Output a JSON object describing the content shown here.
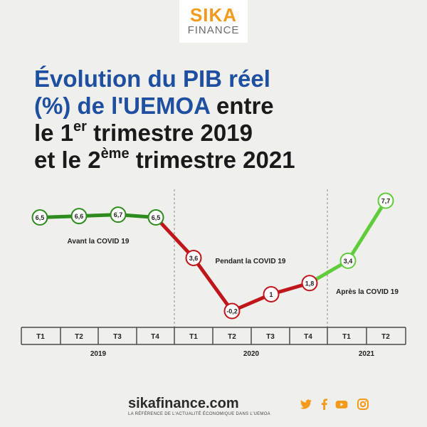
{
  "brand": {
    "logo_top": "SIKA",
    "logo_bottom": "FINANCE",
    "site": "sikafinance.com",
    "tagline": "LA RÉFÉRENCE DE L'ACTUALITÉ ÉCONOMIQUE DANS L'UEMOA",
    "accent": "#f39a1b",
    "social_icons": [
      "twitter-icon",
      "facebook-icon",
      "youtube-icon",
      "instagram-icon"
    ]
  },
  "title": {
    "line1": "Évolution du PIB réel",
    "line2a": "(%) de l'UEMOA",
    "line2b": " entre",
    "line3a": "le 1",
    "line3sup": "er",
    "line3b": " trimestre 2019",
    "line4a": "et le 2",
    "line4sup": "ème",
    "line4b": " trimestre 2021"
  },
  "chart_data": {
    "type": "line",
    "title": "Évolution du PIB réel (%) de l'UEMOA entre le 1er trimestre 2019 et le 2ème trimestre 2021",
    "x": [
      "T1 2019",
      "T2 2019",
      "T3 2019",
      "T4 2019",
      "T1 2020",
      "T2 2020",
      "T3 2020",
      "T4 2020",
      "T1 2021",
      "T2 2021"
    ],
    "quarters": [
      "T1",
      "T2",
      "T3",
      "T4",
      "T1",
      "T2",
      "T3",
      "T4",
      "T1",
      "T2"
    ],
    "years": [
      "2019",
      "2020",
      "2021"
    ],
    "values": [
      6.5,
      6.6,
      6.7,
      6.5,
      3.6,
      -0.2,
      1,
      1.8,
      3.4,
      7.7
    ],
    "value_labels": [
      "6,5",
      "6,6",
      "6,7",
      "6,5",
      "3,6",
      "-0,2",
      "1",
      "1,8",
      "3,4",
      "7,7"
    ],
    "periods": [
      {
        "label": "Avant la COVID 19",
        "color": "#2e8b1e"
      },
      {
        "label": "Pendant la COVID 19",
        "color": "#c0161b"
      },
      {
        "label": "Après la COVID 19",
        "color": "#5fcd3b"
      }
    ],
    "segment_period": [
      0,
      0,
      0,
      1,
      1,
      1,
      1,
      2,
      2
    ],
    "point_period": [
      0,
      0,
      0,
      0,
      1,
      1,
      1,
      1,
      2,
      2
    ],
    "ylim": [
      -0.2,
      7.7
    ],
    "grid": false
  }
}
